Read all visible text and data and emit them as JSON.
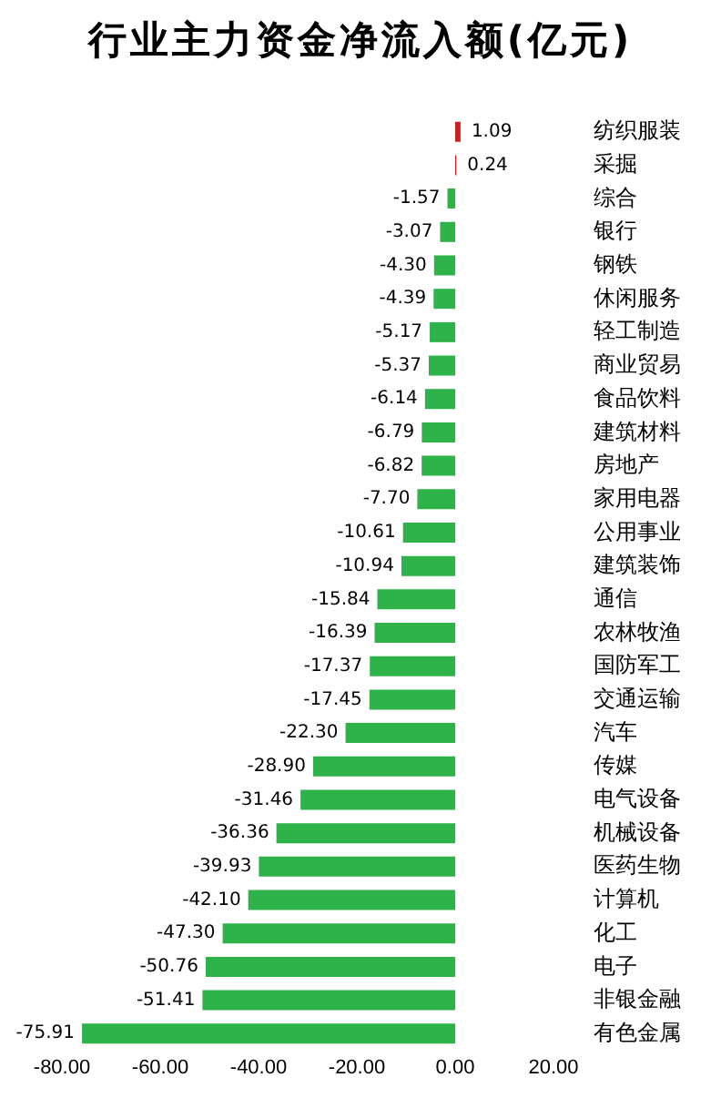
{
  "chart_data": {
    "type": "bar",
    "orientation": "horizontal",
    "title": "行业主力资金净流入额(亿元)",
    "categories": [
      "纺织服装",
      "采掘",
      "综合",
      "银行",
      "钢铁",
      "休闲服务",
      "轻工制造",
      "商业贸易",
      "食品饮料",
      "建筑材料",
      "房地产",
      "家用电器",
      "公用事业",
      "建筑装饰",
      "通信",
      "农林牧渔",
      "国防军工",
      "交通运输",
      "汽车",
      "传媒",
      "电气设备",
      "机械设备",
      "医药生物",
      "计算机",
      "化工",
      "电子",
      "非银金融",
      "有色金属"
    ],
    "values": [
      1.09,
      0.24,
      -1.57,
      -3.07,
      -4.3,
      -4.39,
      -5.17,
      -5.37,
      -6.14,
      -6.79,
      -6.82,
      -7.7,
      -10.61,
      -10.94,
      -15.84,
      -16.39,
      -17.37,
      -17.45,
      -22.3,
      -28.9,
      -31.46,
      -36.36,
      -39.93,
      -42.1,
      -47.3,
      -50.76,
      -51.41,
      -75.91
    ],
    "value_labels": [
      "1.09",
      "0.24",
      "-1.57",
      "-3.07",
      "-4.30",
      "-4.39",
      "-5.17",
      "-5.37",
      "-6.14",
      "-6.79",
      "-6.82",
      "-7.70",
      "-10.61",
      "-10.94",
      "-15.84",
      "-16.39",
      "-17.37",
      "-17.45",
      "-22.30",
      "-28.90",
      "-31.46",
      "-36.36",
      "-39.93",
      "-42.10",
      "-47.30",
      "-50.76",
      "-51.41",
      "-75.91"
    ],
    "colors": [
      "#cc2020",
      "#cc2020",
      "#2eb34a",
      "#2eb34a",
      "#2eb34a",
      "#2eb34a",
      "#2eb34a",
      "#2eb34a",
      "#2eb34a",
      "#2eb34a",
      "#2eb34a",
      "#2eb34a",
      "#2eb34a",
      "#2eb34a",
      "#2eb34a",
      "#2eb34a",
      "#2eb34a",
      "#2eb34a",
      "#2eb34a",
      "#2eb34a",
      "#2eb34a",
      "#2eb34a",
      "#2eb34a",
      "#2eb34a",
      "#2eb34a",
      "#2eb34a",
      "#2eb34a",
      "#2eb34a"
    ],
    "xlim": [
      -80,
      20
    ],
    "xticks": [
      {
        "value": -80,
        "label": "-80.00"
      },
      {
        "value": -60,
        "label": "-60.00"
      },
      {
        "value": -40,
        "label": "-40.00"
      },
      {
        "value": -20,
        "label": "-20.00"
      },
      {
        "value": 0,
        "label": "0.00"
      },
      {
        "value": 20,
        "label": "20.00"
      }
    ],
    "grid": false,
    "legend": false
  }
}
